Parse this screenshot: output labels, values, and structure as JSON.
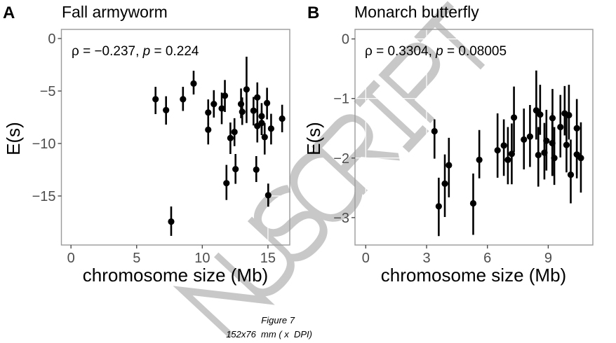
{
  "figure": {
    "caption_line1": "Figure 7",
    "caption_line2": "152x76  mm ( x  DPI)",
    "watermark": "NUSCRIPT"
  },
  "chart_data": [
    {
      "type": "scatter",
      "panel_letter": "A",
      "title": "Fall armyworm",
      "annotation": {
        "rho_label": "ρ = −0.237, ",
        "p_symbol": "p",
        "p_value": " = 0.224"
      },
      "xlabel": "chromosome size (Mb)",
      "ylabel": "E(s)",
      "xlim": [
        -0.73,
        16.66
      ],
      "ylim": [
        -19.67,
        0.87
      ],
      "xticks": [
        0,
        5,
        10,
        15
      ],
      "xtick_labels": [
        "0",
        "5",
        "10",
        "15"
      ],
      "yticks": [
        0,
        -5,
        -10,
        -15
      ],
      "ytick_labels": [
        "0",
        "−5",
        "−10",
        "−15"
      ],
      "grid": false,
      "error_bars": true,
      "points": [
        {
          "x": 6.44,
          "y": -5.78,
          "lo": -7.2,
          "hi": -4.6
        },
        {
          "x": 7.24,
          "y": -6.82,
          "lo": -8.2,
          "hi": -5.5
        },
        {
          "x": 7.63,
          "y": -17.44,
          "lo": -18.8,
          "hi": -16.0
        },
        {
          "x": 8.53,
          "y": -5.78,
          "lo": -6.9,
          "hi": -4.6
        },
        {
          "x": 9.34,
          "y": -4.29,
          "lo": -5.33,
          "hi": -3.07
        },
        {
          "x": 10.45,
          "y": -7.05,
          "lo": -8.2,
          "hi": -5.8
        },
        {
          "x": 10.45,
          "y": -8.69,
          "lo": -10.09,
          "hi": -8.05
        },
        {
          "x": 10.88,
          "y": -6.24,
          "lo": -7.53,
          "hi": -4.92
        },
        {
          "x": 11.48,
          "y": -6.66,
          "lo": -8.16,
          "hi": -5.15
        },
        {
          "x": 11.72,
          "y": -5.45,
          "lo": -7.0,
          "hi": -3.95
        },
        {
          "x": 11.84,
          "y": -13.78,
          "lo": -15.38,
          "hi": -12.04
        },
        {
          "x": 12.14,
          "y": -9.48,
          "lo": -11.0,
          "hi": -8.0
        },
        {
          "x": 12.45,
          "y": -8.9,
          "lo": -10.25,
          "hi": -7.59
        },
        {
          "x": 12.53,
          "y": -12.44,
          "lo": -13.84,
          "hi": -11.0
        },
        {
          "x": 12.95,
          "y": -6.24,
          "lo": -7.59,
          "hi": -4.76
        },
        {
          "x": 13.04,
          "y": -6.98,
          "lo": -8.23,
          "hi": -5.61
        },
        {
          "x": 13.37,
          "y": -4.85,
          "lo": -8.05,
          "hi": -1.73
        },
        {
          "x": 13.9,
          "y": -6.87,
          "lo": -8.28,
          "hi": -5.57
        },
        {
          "x": 14.11,
          "y": -12.49,
          "lo": -13.67,
          "hi": -11.2
        },
        {
          "x": 14.19,
          "y": -5.61,
          "lo": -7.17,
          "hi": -4.18
        },
        {
          "x": 14.19,
          "y": -8.33,
          "lo": -9.9,
          "hi": -6.89
        },
        {
          "x": 14.52,
          "y": -7.4,
          "lo": -9.2,
          "hi": -6.15
        },
        {
          "x": 14.52,
          "y": -8.05,
          "lo": -9.2,
          "hi": -6.9
        },
        {
          "x": 14.75,
          "y": -9.39,
          "lo": -11.05,
          "hi": -8.05
        },
        {
          "x": 14.93,
          "y": -6.15,
          "lo": -7.7,
          "hi": -4.69
        },
        {
          "x": 15.02,
          "y": -14.93,
          "lo": -16.02,
          "hi": -13.82
        },
        {
          "x": 15.24,
          "y": -8.58,
          "lo": -10.09,
          "hi": -7.17
        },
        {
          "x": 16.08,
          "y": -7.63,
          "lo": -8.93,
          "hi": -6.31
        }
      ]
    },
    {
      "type": "scatter",
      "panel_letter": "B",
      "title": "Monarch butterfly",
      "annotation": {
        "rho_label": "ρ = 0.3304, ",
        "p_symbol": "p",
        "p_value": " = 0.08005"
      },
      "xlabel": "chromosome size (Mb)",
      "ylabel": "E(s)",
      "xlim": [
        -0.53,
        11.2
      ],
      "ylim": [
        -3.46,
        0.16
      ],
      "xticks": [
        0,
        3,
        6,
        9
      ],
      "xtick_labels": [
        "0",
        "3",
        "6",
        "9"
      ],
      "yticks": [
        0,
        -1,
        -2,
        -3
      ],
      "ytick_labels": [
        "0",
        "−1",
        "−2",
        "−3"
      ],
      "grid": false,
      "error_bars": true,
      "points": [
        {
          "x": 3.39,
          "y": -1.55,
          "lo": -2.01,
          "hi": -1.35
        },
        {
          "x": 3.6,
          "y": -2.81,
          "lo": -3.31,
          "hi": -2.33
        },
        {
          "x": 3.9,
          "y": -2.43,
          "lo": -2.99,
          "hi": -1.94
        },
        {
          "x": 4.1,
          "y": -2.12,
          "lo": -2.66,
          "hi": -1.66
        },
        {
          "x": 5.3,
          "y": -2.76,
          "lo": -3.29,
          "hi": -2.26
        },
        {
          "x": 5.6,
          "y": -2.03,
          "lo": -2.34,
          "hi": -1.53
        },
        {
          "x": 6.5,
          "y": -1.87,
          "lo": -2.33,
          "hi": -1.25
        },
        {
          "x": 6.81,
          "y": -1.79,
          "lo": -2.3,
          "hi": -1.35
        },
        {
          "x": 7.01,
          "y": -2.03,
          "lo": -2.44,
          "hi": -1.48
        },
        {
          "x": 7.2,
          "y": -1.93,
          "lo": -2.44,
          "hi": -1.42
        },
        {
          "x": 7.31,
          "y": -1.32,
          "lo": -1.9,
          "hi": -0.8
        },
        {
          "x": 7.8,
          "y": -1.69,
          "lo": -2.19,
          "hi": -1.17
        },
        {
          "x": 8.1,
          "y": -1.64,
          "lo": -2.15,
          "hi": -1.11
        },
        {
          "x": 8.41,
          "y": -1.2,
          "lo": -1.69,
          "hi": -0.53
        },
        {
          "x": 8.51,
          "y": -1.95,
          "lo": -2.48,
          "hi": -1.48
        },
        {
          "x": 8.6,
          "y": -1.27,
          "lo": -1.61,
          "hi": -0.77
        },
        {
          "x": 8.81,
          "y": -1.91,
          "lo": -2.36,
          "hi": -1.41
        },
        {
          "x": 8.91,
          "y": -1.71,
          "lo": -2.21,
          "hi": -1.19
        },
        {
          "x": 9.2,
          "y": -1.75,
          "lo": -2.3,
          "hi": -1.24
        },
        {
          "x": 9.21,
          "y": -1.33,
          "lo": -2.3,
          "hi": -0.84
        },
        {
          "x": 9.3,
          "y": -2.0,
          "lo": -2.45,
          "hi": -1.48
        },
        {
          "x": 9.6,
          "y": -1.48,
          "lo": -1.99,
          "hi": -0.94
        },
        {
          "x": 9.81,
          "y": -1.25,
          "lo": -1.62,
          "hi": -0.79
        },
        {
          "x": 9.9,
          "y": -1.78,
          "lo": -2.24,
          "hi": -1.26
        },
        {
          "x": 10.02,
          "y": -1.28,
          "lo": -1.69,
          "hi": -0.77
        },
        {
          "x": 10.11,
          "y": -2.28,
          "lo": -2.76,
          "hi": -1.69
        },
        {
          "x": 10.41,
          "y": -1.5,
          "lo": -2.34,
          "hi": -1.01
        },
        {
          "x": 10.41,
          "y": -1.94,
          "lo": -2.28,
          "hi": -1.48
        },
        {
          "x": 10.61,
          "y": -2.0,
          "lo": -2.58,
          "hi": -1.4
        }
      ]
    }
  ]
}
